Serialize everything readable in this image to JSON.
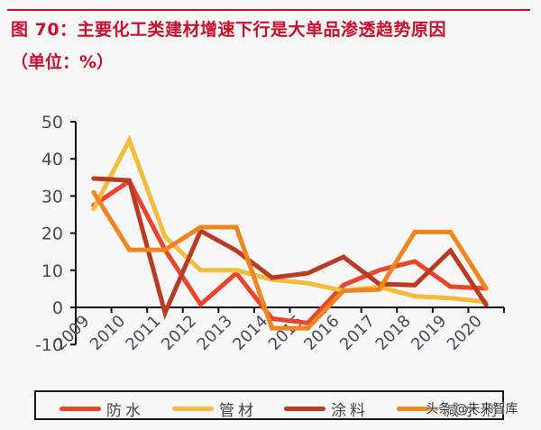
{
  "header": {
    "title": "图 70：主要化工类建材增速下行是大单品渗透趋势原因",
    "unit": "（单位：%）"
  },
  "colors": {
    "title": "#c8102e",
    "防水": "#e8452a",
    "管材": "#f3bd3c",
    "涂料": "#b83c24",
    "减水剂": "#f0851f"
  },
  "watermark": "头条 @未来智库",
  "chart_data": {
    "type": "line",
    "title": "主要化工类建材增速下行是大单品渗透趋势原因",
    "xlabel": "",
    "ylabel": "单位：%",
    "categories": [
      "2009",
      "2010",
      "2011",
      "2012",
      "2013",
      "2014",
      "2015",
      "2016",
      "2017",
      "2018",
      "2019",
      "2020"
    ],
    "ylim": [
      -10,
      50
    ],
    "yticks": [
      -10,
      0,
      10,
      20,
      30,
      40,
      50
    ],
    "grid": false,
    "legend_position": "bottom",
    "series": [
      {
        "name": "防水",
        "color": "#e8452a",
        "values": [
          27.5,
          34.0,
          15.5,
          0.8,
          9.2,
          -3.0,
          -4.2,
          6.0,
          10.0,
          12.4,
          5.6,
          5.1
        ]
      },
      {
        "name": "管材",
        "color": "#f3bd3c",
        "values": [
          26.5,
          45.0,
          19.0,
          10.0,
          10.0,
          7.5,
          6.5,
          4.5,
          5.5,
          3.0,
          2.5,
          1.5
        ]
      },
      {
        "name": "涂料",
        "color": "#b83c24",
        "values": [
          34.7,
          34.2,
          -1.5,
          20.6,
          15.3,
          8.0,
          9.2,
          13.6,
          6.3,
          6.0,
          15.3,
          0.7
        ]
      },
      {
        "name": "减水剂",
        "color": "#f0851f",
        "values": [
          31.0,
          15.5,
          15.5,
          21.6,
          21.6,
          -5.6,
          -5.6,
          4.5,
          4.8,
          20.3,
          20.3,
          5.1
        ]
      }
    ]
  },
  "legend": {
    "items": [
      {
        "label": "防水",
        "color": "#e8452a"
      },
      {
        "label": "管材",
        "color": "#f3bd3c"
      },
      {
        "label": "涂料",
        "color": "#b83c24"
      },
      {
        "label": "减水剂",
        "color": "#f0851f"
      }
    ]
  }
}
